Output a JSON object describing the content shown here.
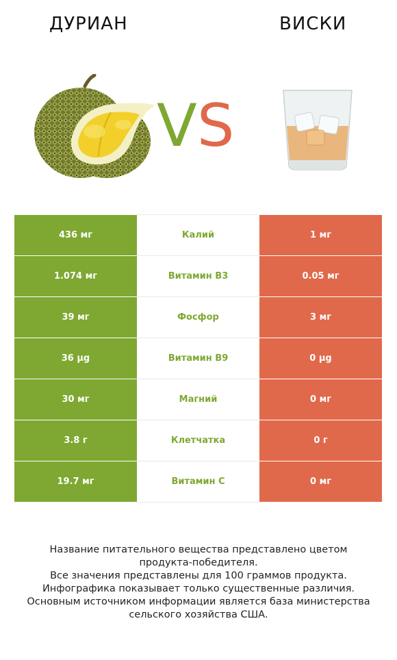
{
  "header": {
    "left_title": "ДУРИАН",
    "right_title": "ВИСКИ",
    "vs_v": "V",
    "vs_s": "S"
  },
  "colors": {
    "winner_left": "#7ea831",
    "winner_right": "#e0694b"
  },
  "rows": [
    {
      "left": "436 мг",
      "name": "Калий",
      "right": "1 мг"
    },
    {
      "left": "1.074 мг",
      "name": "Витамин B3",
      "right": "0.05 мг"
    },
    {
      "left": "39 мг",
      "name": "Фосфор",
      "right": "3 мг"
    },
    {
      "left": "36 µg",
      "name": "Витамин B9",
      "right": "0 µg"
    },
    {
      "left": "30 мг",
      "name": "Магний",
      "right": "0 мг"
    },
    {
      "left": "3.8 г",
      "name": "Клетчатка",
      "right": "0 г"
    },
    {
      "left": "19.7 мг",
      "name": "Витамин C",
      "right": "0 мг"
    }
  ],
  "footnote": [
    "Название питательного вещества представлено цветом",
    "продукта-победителя.",
    "Все значения представлены для 100 граммов продукта.",
    "Инфографика показывает только существенные различия.",
    "Основным источником информации является база министерства",
    "сельского хозяйства США."
  ]
}
